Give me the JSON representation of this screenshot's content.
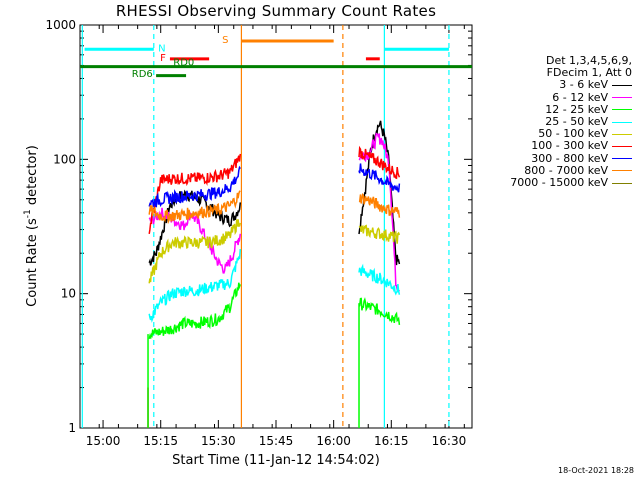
{
  "chart_data": {
    "type": "line",
    "title": "RHESSI Observing Summary Count Rates",
    "xlabel": "Start Time (11-Jan-12 14:54:02)",
    "ylabel_main": "Count Rate (s",
    "ylabel_exp": "-1",
    "ylabel_mid": " detector",
    "ylabel_end": ")",
    "y_scale": "log",
    "xlim": [
      14.9,
      16.6
    ],
    "ylim": [
      1,
      1000
    ],
    "x_ticks": [
      {
        "v": 15.0,
        "label": "15:00"
      },
      {
        "v": 15.25,
        "label": "15:15"
      },
      {
        "v": 15.5,
        "label": "15:30"
      },
      {
        "v": 15.75,
        "label": "15:45"
      },
      {
        "v": 16.0,
        "label": "16:00"
      },
      {
        "v": 16.25,
        "label": "16:15"
      },
      {
        "v": 16.5,
        "label": "16:30"
      }
    ],
    "y_ticks": [
      {
        "v": 1,
        "label": "1"
      },
      {
        "v": 10,
        "label": "10"
      },
      {
        "v": 100,
        "label": "100"
      },
      {
        "v": 1000,
        "label": "1000"
      }
    ],
    "legend_header": [
      "Det 1,3,4,5,6,9,",
      "FDecim 1, Att 0"
    ],
    "series": [
      {
        "name": "3 - 6 keV",
        "color": "#000000",
        "seg1": [
          [
            15.2,
            17
          ],
          [
            15.23,
            20
          ],
          [
            15.26,
            30
          ],
          [
            15.29,
            45
          ],
          [
            15.32,
            52
          ],
          [
            15.36,
            55
          ],
          [
            15.4,
            52
          ],
          [
            15.45,
            47
          ],
          [
            15.5,
            38
          ],
          [
            15.55,
            35
          ],
          [
            15.57,
            38
          ],
          [
            15.595,
            45
          ]
        ],
        "seg2": [
          [
            16.11,
            30
          ],
          [
            16.14,
            65
          ],
          [
            16.16,
            115
          ],
          [
            16.18,
            160
          ],
          [
            16.2,
            185
          ],
          [
            16.22,
            150
          ],
          [
            16.24,
            95
          ],
          [
            16.255,
            40
          ],
          [
            16.27,
            18
          ],
          [
            16.285,
            17
          ]
        ]
      },
      {
        "name": "6 - 12 keV",
        "color": "#ff00ff",
        "seg1": [
          [
            15.2,
            34
          ],
          [
            15.25,
            40
          ],
          [
            15.3,
            36
          ],
          [
            15.35,
            32
          ],
          [
            15.38,
            40
          ],
          [
            15.42,
            32
          ],
          [
            15.46,
            23
          ],
          [
            15.5,
            17
          ],
          [
            15.53,
            15
          ],
          [
            15.56,
            19
          ],
          [
            15.595,
            28
          ]
        ],
        "seg2": [
          [
            16.11,
            105
          ],
          [
            16.15,
            110
          ],
          [
            16.19,
            145
          ],
          [
            16.21,
            140
          ],
          [
            16.24,
            95
          ],
          [
            16.255,
            35
          ],
          [
            16.27,
            12
          ],
          [
            16.285,
            11
          ]
        ]
      },
      {
        "name": "12 - 25 keV",
        "color": "#00ff00",
        "seg1": [
          [
            15.2,
            5
          ],
          [
            15.25,
            5.2
          ],
          [
            15.3,
            5.5
          ],
          [
            15.35,
            6
          ],
          [
            15.4,
            6
          ],
          [
            15.45,
            6.2
          ],
          [
            15.5,
            6.5
          ],
          [
            15.55,
            8
          ],
          [
            15.595,
            12
          ]
        ],
        "seg2": [
          [
            16.11,
            8.5
          ],
          [
            16.15,
            8
          ],
          [
            16.2,
            7.5
          ],
          [
            16.24,
            7
          ],
          [
            16.27,
            6.5
          ],
          [
            16.285,
            6.3
          ]
        ]
      },
      {
        "name": "25 - 50 keV",
        "color": "#00ffff",
        "seg1": [
          [
            15.2,
            6.5
          ],
          [
            15.25,
            8.5
          ],
          [
            15.3,
            10
          ],
          [
            15.35,
            10.5
          ],
          [
            15.4,
            10.5
          ],
          [
            15.45,
            11
          ],
          [
            15.5,
            11.5
          ],
          [
            15.55,
            12
          ],
          [
            15.595,
            20
          ]
        ],
        "seg2": [
          [
            16.11,
            15
          ],
          [
            16.15,
            14
          ],
          [
            16.2,
            13
          ],
          [
            16.24,
            12
          ],
          [
            16.27,
            11
          ],
          [
            16.285,
            10.5
          ]
        ]
      },
      {
        "name": "50 - 100 keV",
        "color": "#cccc00",
        "seg1": [
          [
            15.2,
            12
          ],
          [
            15.25,
            20
          ],
          [
            15.3,
            24
          ],
          [
            15.35,
            24
          ],
          [
            15.4,
            24
          ],
          [
            15.45,
            24
          ],
          [
            15.5,
            25
          ],
          [
            15.55,
            27
          ],
          [
            15.595,
            36
          ]
        ],
        "seg2": [
          [
            16.11,
            30
          ],
          [
            16.15,
            29
          ],
          [
            16.2,
            28
          ],
          [
            16.24,
            27
          ],
          [
            16.27,
            26
          ],
          [
            16.285,
            26
          ]
        ]
      },
      {
        "name": "100 - 300 keV",
        "color": "#ff0000",
        "seg1": [
          [
            15.2,
            30
          ],
          [
            15.25,
            70
          ],
          [
            15.3,
            72
          ],
          [
            15.35,
            72
          ],
          [
            15.4,
            72
          ],
          [
            15.45,
            73
          ],
          [
            15.5,
            75
          ],
          [
            15.55,
            80
          ],
          [
            15.595,
            105
          ]
        ],
        "seg2": [
          [
            16.11,
            115
          ],
          [
            16.15,
            105
          ],
          [
            16.2,
            95
          ],
          [
            16.24,
            85
          ],
          [
            16.27,
            80
          ],
          [
            16.285,
            78
          ]
        ]
      },
      {
        "name": "300 - 800 keV",
        "color": "#0000ff",
        "seg1": [
          [
            15.2,
            47
          ],
          [
            15.25,
            50
          ],
          [
            15.3,
            52
          ],
          [
            15.35,
            53
          ],
          [
            15.4,
            54
          ],
          [
            15.45,
            55
          ],
          [
            15.5,
            57
          ],
          [
            15.55,
            62
          ],
          [
            15.595,
            80
          ]
        ],
        "seg2": [
          [
            16.11,
            85
          ],
          [
            16.15,
            80
          ],
          [
            16.2,
            72
          ],
          [
            16.24,
            65
          ],
          [
            16.27,
            62
          ],
          [
            16.285,
            61
          ]
        ]
      },
      {
        "name": "800 - 7000 keV",
        "color": "#ff8000",
        "seg1": [
          [
            15.2,
            42
          ],
          [
            15.25,
            38
          ],
          [
            15.3,
            38
          ],
          [
            15.35,
            39
          ],
          [
            15.4,
            40
          ],
          [
            15.45,
            41
          ],
          [
            15.5,
            42
          ],
          [
            15.55,
            45
          ],
          [
            15.595,
            55
          ]
        ],
        "seg2": [
          [
            16.11,
            52
          ],
          [
            16.15,
            50
          ],
          [
            16.2,
            45
          ],
          [
            16.24,
            42
          ],
          [
            16.27,
            41
          ],
          [
            16.285,
            40
          ]
        ]
      },
      {
        "name": "7000 - 15000 keV",
        "color": "#808000",
        "seg1": [],
        "seg2": []
      }
    ],
    "spikes": [
      {
        "x": 15.195,
        "from": 1,
        "to": 2,
        "color": "#ff0000"
      },
      {
        "x": 15.195,
        "from": 1,
        "to": 5,
        "color": "#00ff00"
      },
      {
        "x": 16.11,
        "from": 1,
        "to": 8.5,
        "color": "#00ff00"
      }
    ],
    "bars": [
      {
        "label": "N",
        "color": "#00ffff",
        "y": 660,
        "x0": 14.92,
        "x1": 15.22,
        "lx": 15.255,
        "ly": 680
      },
      {
        "label": "",
        "color": "#00ffff",
        "y": 660,
        "x0": 16.22,
        "x1": 16.5,
        "lx": 0,
        "ly": 0
      },
      {
        "label": "F",
        "color": "#ff0000",
        "y": 560,
        "x0": 15.29,
        "x1": 15.46,
        "lx": 15.26,
        "ly": 580
      },
      {
        "label": "",
        "color": "#ff0000",
        "y": 560,
        "x0": 16.14,
        "x1": 16.2,
        "lx": 0,
        "ly": 0
      },
      {
        "label": "S",
        "color": "#ff8000",
        "y": 760,
        "x0": 15.6,
        "x1": 16.0,
        "lx": 15.53,
        "ly": 790
      },
      {
        "label": "RD0",
        "color": "#008000",
        "y": 490,
        "x0": 14.9,
        "x1": 16.6,
        "lx": 15.35,
        "ly": 535
      },
      {
        "label": "RD6",
        "color": "#008000",
        "y": 420,
        "x0": 15.23,
        "x1": 15.36,
        "lx": 15.17,
        "ly": 440
      }
    ],
    "vlines": [
      {
        "x": 15.22,
        "color": "#00ffff",
        "dashed": true
      },
      {
        "x": 16.5,
        "color": "#00ffff",
        "dashed": true
      },
      {
        "x": 16.22,
        "color": "#00ffff",
        "dashed": false
      },
      {
        "x": 14.91,
        "color": "#00ffff",
        "dashed": false
      },
      {
        "x": 15.6,
        "color": "#ff8000",
        "dashed": false
      },
      {
        "x": 16.04,
        "color": "#ff8000",
        "dashed": true
      }
    ]
  },
  "footer": {
    "timestamp": "18-Oct-2021 18:28"
  },
  "colors": {
    "axis": "#000000",
    "background": "#ffffff"
  }
}
